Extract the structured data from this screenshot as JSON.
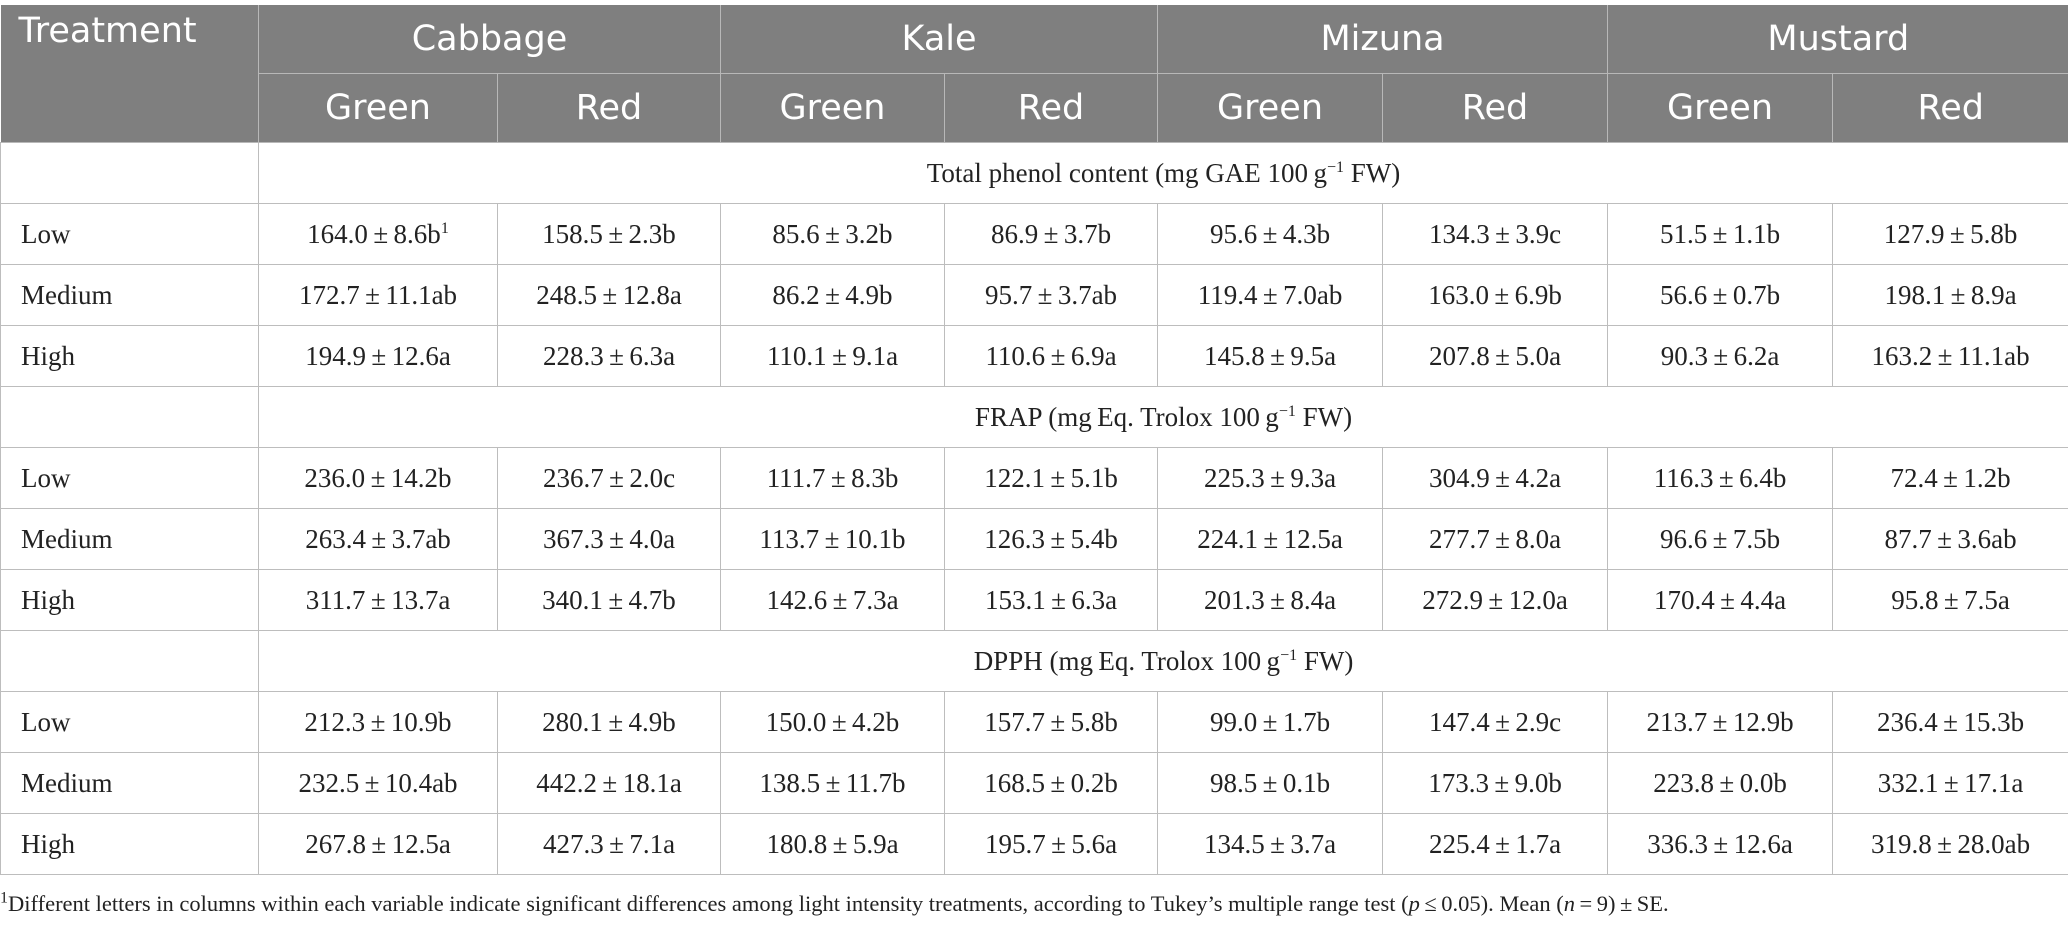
{
  "header": {
    "treatment_label": "Treatment",
    "groups": [
      "Cabbage",
      "Kale",
      "Mizuna",
      "Mustard"
    ],
    "subgroups": [
      "Green",
      "Red",
      "Green",
      "Red",
      "Green",
      "Red",
      "Green",
      "Red"
    ]
  },
  "sections": [
    {
      "title_pre": "Total phenol content (mg GAE 100 g",
      "title_sup": "−1",
      "title_post": " FW)",
      "rows": [
        {
          "label": "Low",
          "values": [
            "164.0 ± 8.6b",
            "158.5 ± 2.3b",
            "85.6 ± 3.2b",
            "86.9 ± 3.7b",
            "95.6 ± 4.3b",
            "134.3 ± 3.9c",
            "51.5 ± 1.1b",
            "127.9 ± 5.8b"
          ]
        },
        {
          "label": "Medium",
          "values": [
            "172.7 ± 11.1ab",
            "248.5 ± 12.8a",
            "86.2 ± 4.9b",
            "95.7 ± 3.7ab",
            "119.4 ± 7.0ab",
            "163.0 ± 6.9b",
            "56.6 ± 0.7b",
            "198.1 ± 8.9a"
          ]
        },
        {
          "label": "High",
          "values": [
            "194.9 ± 12.6a",
            "228.3 ± 6.3a",
            "110.1 ± 9.1a",
            "110.6 ± 6.9a",
            "145.8 ± 9.5a",
            "207.8 ± 5.0a",
            "90.3 ± 6.2a",
            "163.2 ± 11.1ab"
          ]
        }
      ]
    },
    {
      "title_pre": "FRAP (mg Eq. Trolox 100 g",
      "title_sup": "−1",
      "title_post": " FW)",
      "rows": [
        {
          "label": "Low",
          "values": [
            "236.0 ± 14.2b",
            "236.7 ± 2.0c",
            "111.7 ± 8.3b",
            "122.1 ± 5.1b",
            "225.3 ± 9.3a",
            "304.9 ± 4.2a",
            "116.3 ± 6.4b",
            "72.4 ± 1.2b"
          ]
        },
        {
          "label": "Medium",
          "values": [
            "263.4 ± 3.7ab",
            "367.3 ± 4.0a",
            "113.7 ± 10.1b",
            "126.3 ± 5.4b",
            "224.1 ± 12.5a",
            "277.7 ± 8.0a",
            "96.6 ± 7.5b",
            "87.7 ± 3.6ab"
          ]
        },
        {
          "label": "High",
          "values": [
            "311.7 ± 13.7a",
            "340.1 ± 4.7b",
            "142.6 ± 7.3a",
            "153.1 ± 6.3a",
            "201.3 ± 8.4a",
            "272.9 ± 12.0a",
            "170.4 ± 4.4a",
            "95.8 ± 7.5a"
          ]
        }
      ]
    },
    {
      "title_pre": "DPPH (mg Eq. Trolox 100 g",
      "title_sup": "−1",
      "title_post": " FW)",
      "rows": [
        {
          "label": "Low",
          "values": [
            "212.3 ± 10.9b",
            "280.1 ± 4.9b",
            "150.0 ± 4.2b",
            "157.7 ± 5.8b",
            "99.0 ± 1.7b",
            "147.4 ± 2.9c",
            "213.7 ± 12.9b",
            "236.4 ± 15.3b"
          ]
        },
        {
          "label": "Medium",
          "values": [
            "232.5 ± 10.4ab",
            "442.2 ± 18.1a",
            "138.5 ± 11.7b",
            "168.5 ± 0.2b",
            "98.5 ± 0.1b",
            "173.3 ± 9.0b",
            "223.8 ± 0.0b",
            "332.1 ± 17.1a"
          ]
        },
        {
          "label": "High",
          "values": [
            "267.8 ± 12.5a",
            "427.3 ± 7.1a",
            "180.8 ± 5.9a",
            "195.7 ± 5.6a",
            "134.5 ± 3.7a",
            "225.4 ± 1.7a",
            "336.3 ± 12.6a",
            "319.8 ± 28.0ab"
          ]
        }
      ]
    }
  ],
  "first_cell_footnote_mark": "1",
  "footnote": {
    "mark": "1",
    "text_a": "Different letters in columns within each variable indicate significant differences among light intensity treatments, according to Tukey’s multiple range test (",
    "p": "p",
    "text_b": " ≤ 0.05). Mean (",
    "n": "n",
    "text_c": " = 9) ± SE."
  }
}
